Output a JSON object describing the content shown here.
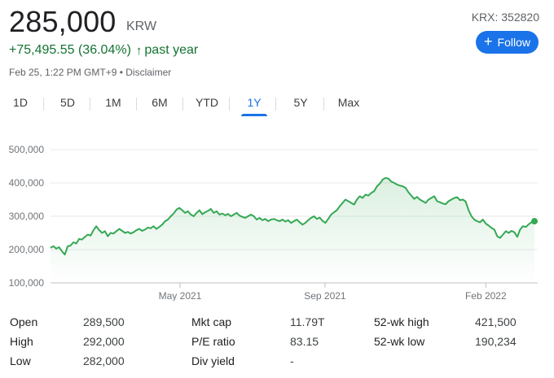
{
  "quote": {
    "price": "285,000",
    "currency": "KRW",
    "ticker": "KRX: 352820",
    "change": "+75,495.55 (36.04%)",
    "change_arrow": "↑",
    "period": "past year",
    "timestamp": "Feb 25, 1:22 PM GMT+9 • Disclaimer",
    "follow_label": "Follow",
    "follow_icon": "+"
  },
  "tabs": [
    {
      "label": "1D"
    },
    {
      "label": "5D"
    },
    {
      "label": "1M"
    },
    {
      "label": "6M"
    },
    {
      "label": "YTD"
    },
    {
      "label": "1Y",
      "active": true
    },
    {
      "label": "5Y"
    },
    {
      "label": "Max"
    }
  ],
  "colors": {
    "accent": "#1a73e8",
    "positive": "#137333",
    "line": "#34a853"
  },
  "chart_data": {
    "type": "line",
    "ylim": [
      100000,
      500000
    ],
    "yticks": [
      "500,000",
      "400,000",
      "300,000",
      "200,000",
      "100,000"
    ],
    "ytick_values": [
      500000,
      400000,
      300000,
      200000,
      100000
    ],
    "xticks": [
      "May 2021",
      "Sep 2021",
      "Feb 2022"
    ],
    "xtick_positions": [
      0.25,
      0.57,
      0.925
    ],
    "grid": true,
    "series": [
      {
        "values": [
          205000,
          210000,
          203000,
          207000,
          195000,
          185000,
          210000,
          212000,
          222000,
          218000,
          232000,
          230000,
          238000,
          245000,
          242000,
          258000,
          270000,
          258000,
          250000,
          255000,
          240000,
          250000,
          248000,
          255000,
          262000,
          256000,
          250000,
          253000,
          248000,
          252000,
          258000,
          262000,
          256000,
          260000,
          266000,
          264000,
          270000,
          262000,
          268000,
          275000,
          285000,
          290000,
          300000,
          308000,
          320000,
          325000,
          318000,
          310000,
          315000,
          305000,
          300000,
          310000,
          318000,
          306000,
          312000,
          316000,
          322000,
          310000,
          315000,
          305000,
          308000,
          303000,
          307000,
          300000,
          305000,
          310000,
          302000,
          298000,
          295000,
          300000,
          305000,
          300000,
          290000,
          295000,
          288000,
          292000,
          285000,
          290000,
          292000,
          288000,
          285000,
          290000,
          284000,
          288000,
          280000,
          285000,
          290000,
          282000,
          275000,
          280000,
          288000,
          295000,
          300000,
          292000,
          296000,
          286000,
          280000,
          292000,
          305000,
          312000,
          318000,
          330000,
          340000,
          350000,
          345000,
          340000,
          335000,
          350000,
          360000,
          355000,
          365000,
          362000,
          370000,
          375000,
          390000,
          398000,
          410000,
          415000,
          413000,
          404000,
          400000,
          395000,
          392000,
          390000,
          385000,
          372000,
          362000,
          352000,
          358000,
          350000,
          345000,
          340000,
          350000,
          355000,
          360000,
          345000,
          342000,
          338000,
          336000,
          345000,
          350000,
          355000,
          357000,
          348000,
          350000,
          344000,
          318000,
          300000,
          290000,
          285000,
          282000,
          290000,
          278000,
          272000,
          265000,
          260000,
          240000,
          235000,
          245000,
          255000,
          250000,
          256000,
          252000,
          238000,
          260000,
          270000,
          268000,
          276000,
          282000,
          285000
        ],
        "end_marker": true
      }
    ]
  },
  "stats": [
    [
      {
        "label": "Open",
        "value": "289,500"
      },
      {
        "label": "Mkt cap",
        "value": "11.79T"
      },
      {
        "label": "52-wk high",
        "value": "421,500"
      }
    ],
    [
      {
        "label": "High",
        "value": "292,000"
      },
      {
        "label": "P/E ratio",
        "value": "83.15"
      },
      {
        "label": "52-wk low",
        "value": "190,234"
      }
    ],
    [
      {
        "label": "Low",
        "value": "282,000"
      },
      {
        "label": "Div yield",
        "value": "-"
      }
    ]
  ]
}
